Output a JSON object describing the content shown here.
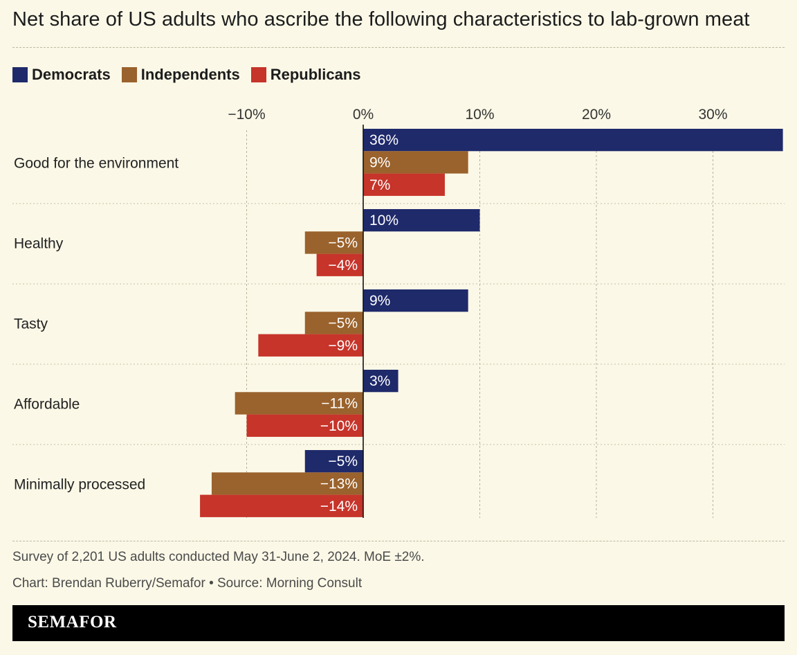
{
  "chart_data": {
    "type": "bar",
    "orientation": "horizontal",
    "title": "Net share of US adults who ascribe the following characteristics to lab-grown meat",
    "categories": [
      "Good for the environment",
      "Healthy",
      "Tasty",
      "Affordable",
      "Minimally processed"
    ],
    "series": [
      {
        "name": "Democrats",
        "color": "#1f2a6b",
        "values": [
          36,
          10,
          9,
          3,
          -5
        ],
        "labels": [
          "36%",
          "10%",
          "9%",
          "3%",
          "−5%"
        ]
      },
      {
        "name": "Independents",
        "color": "#9a622c",
        "values": [
          9,
          -5,
          -5,
          -11,
          -13
        ],
        "labels": [
          "9%",
          "−5%",
          "−5%",
          "−11%",
          "−13%"
        ]
      },
      {
        "name": "Republicans",
        "color": "#c6342a",
        "values": [
          7,
          -4,
          -9,
          -10,
          -14
        ],
        "labels": [
          "7%",
          "−4%",
          "−9%",
          "−10%",
          "−14%"
        ]
      }
    ],
    "x_ticks": [
      -10,
      0,
      10,
      20,
      30
    ],
    "x_tick_labels": [
      "−10%",
      "0%",
      "10%",
      "20%",
      "30%"
    ],
    "xlim": [
      -14.1,
      36.2
    ],
    "grid": "vertical dashed",
    "legend_position": "top-left",
    "xlabel": "",
    "ylabel": ""
  },
  "footer": {
    "note": "Survey of 2,201 US adults conducted May 31-June 2, 2024. MoE ±2%.",
    "credit": "Chart: Brendan Ruberry/Semafor • Source: Morning Consult",
    "brand": "SEMAFOR"
  },
  "colors": {
    "background": "#fbf8e7",
    "text": "#222222",
    "grid": "#bdb8a0",
    "brandbar": "#000000"
  }
}
